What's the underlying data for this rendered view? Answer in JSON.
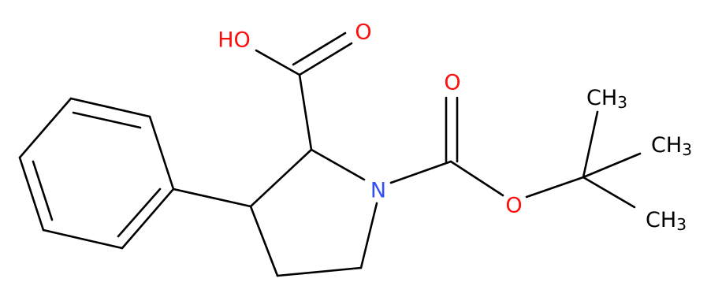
{
  "atoms": {
    "hydroxyl": "HO",
    "acid_oxygen": "O",
    "nitrogen": "N",
    "boc_carbonyl_oxygen": "O",
    "ester_oxygen": "O"
  },
  "methyls": [
    {
      "main": "CH",
      "sub": "3"
    },
    {
      "main": "CH",
      "sub": "3"
    },
    {
      "main": "CH",
      "sub": "3"
    }
  ]
}
